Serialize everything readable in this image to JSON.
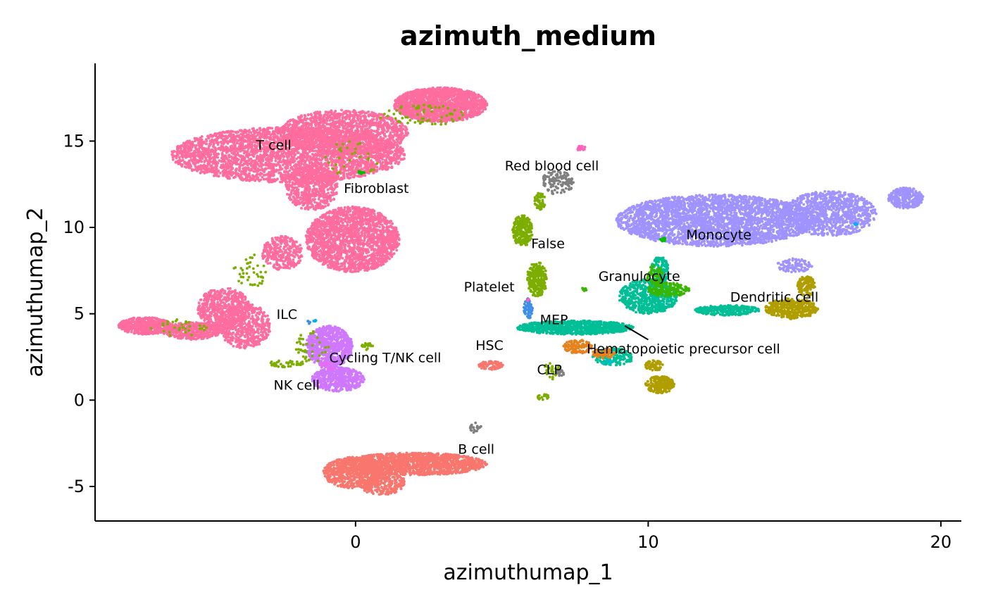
{
  "chart_data": {
    "type": "scatter",
    "title": "azimuth_medium",
    "xlabel": "azimuthumap_1",
    "ylabel": "azimuthumap_2",
    "xlim": [
      -8.9,
      20.7
    ],
    "ylim": [
      -7.0,
      19.5
    ],
    "x_ticks": [
      {
        "value": 0,
        "label": "0"
      },
      {
        "value": 10,
        "label": "10"
      },
      {
        "value": 20,
        "label": "20"
      }
    ],
    "y_ticks": [
      {
        "value": -5,
        "label": "-5"
      },
      {
        "value": 0,
        "label": "0"
      },
      {
        "value": 5,
        "label": "5"
      },
      {
        "value": 10,
        "label": "10"
      },
      {
        "value": 15,
        "label": "15"
      }
    ],
    "grid": false,
    "legend": "none",
    "series": [
      {
        "name": "T cell",
        "color": "#FF6C9E",
        "label_at": [
          -3.4,
          14.5
        ],
        "regions": [
          [
            -2.3,
            14.2,
            4.0,
            1.6,
            3200
          ],
          [
            2.9,
            17.1,
            1.6,
            1.0,
            1800
          ],
          [
            -0.4,
            15.5,
            2.2,
            1.3,
            1400
          ],
          [
            -1.5,
            12.3,
            0.9,
            1.3,
            600
          ],
          [
            -0.1,
            9.3,
            1.6,
            1.9,
            1900
          ],
          [
            -2.5,
            8.5,
            0.7,
            1.0,
            300
          ],
          [
            -4.5,
            5.3,
            0.9,
            1.2,
            600
          ],
          [
            -3.8,
            4.3,
            0.9,
            1.3,
            500
          ],
          [
            -7.2,
            4.3,
            0.9,
            0.5,
            500
          ],
          [
            -5.6,
            4.0,
            1.0,
            0.5,
            400
          ]
        ]
      },
      {
        "name": "B cell",
        "color": "#F8766D",
        "label_at": [
          3.5,
          -3.1
        ],
        "regions": [
          [
            2.0,
            -3.7,
            2.5,
            0.65,
            1500
          ],
          [
            -0.1,
            -4.2,
            1.0,
            0.9,
            600
          ],
          [
            0.9,
            -4.8,
            0.8,
            0.7,
            300
          ],
          [
            4.6,
            2.0,
            0.45,
            0.25,
            80
          ]
        ]
      },
      {
        "name": "Monocyte",
        "color": "#A093FF",
        "label_at": [
          11.3,
          9.3
        ],
        "regions": [
          [
            12.3,
            10.4,
            3.4,
            1.5,
            3000
          ],
          [
            16.2,
            10.8,
            1.6,
            1.3,
            1000
          ],
          [
            18.8,
            11.7,
            0.6,
            0.6,
            300
          ],
          [
            15.0,
            7.8,
            0.6,
            0.4,
            100
          ]
        ]
      },
      {
        "name": "Cycling T/NK cell",
        "color": "#CF78FF",
        "label_at": [
          -0.9,
          2.2
        ],
        "regions": [
          [
            -0.9,
            3.1,
            0.8,
            1.2,
            800
          ],
          [
            -0.6,
            1.2,
            0.9,
            0.7,
            500
          ]
        ]
      },
      {
        "name": "MEP",
        "color": "#00BF96",
        "label_at": [
          6.3,
          4.4
        ],
        "regions": [
          [
            7.5,
            4.2,
            2.0,
            0.4,
            900
          ],
          [
            10.0,
            6.0,
            1.0,
            1.0,
            600
          ],
          [
            10.4,
            7.5,
            0.3,
            0.8,
            150
          ],
          [
            12.7,
            5.2,
            1.1,
            0.3,
            300
          ],
          [
            8.8,
            2.5,
            0.7,
            0.5,
            150
          ]
        ]
      },
      {
        "name": "Dendritic cell",
        "color": "#B09E00",
        "label_at": [
          12.8,
          5.7
        ],
        "regions": [
          [
            14.9,
            5.3,
            0.9,
            0.6,
            400
          ],
          [
            15.4,
            6.6,
            0.3,
            0.6,
            150
          ],
          [
            10.4,
            0.9,
            0.5,
            0.5,
            200
          ],
          [
            10.2,
            2.0,
            0.3,
            0.3,
            60
          ]
        ]
      },
      {
        "name": "False",
        "color": "#7CAE00",
        "label_at": [
          6.0,
          8.8
        ],
        "regions": [
          [
            5.7,
            9.8,
            0.35,
            0.9,
            250
          ],
          [
            6.2,
            7.0,
            0.35,
            1.0,
            250
          ],
          [
            6.3,
            11.5,
            0.2,
            0.5,
            60
          ],
          [
            -1.5,
            3.0,
            0.6,
            1.0,
            40
          ],
          [
            -2.4,
            2.1,
            0.6,
            0.2,
            40
          ],
          [
            2.3,
            16.5,
            1.5,
            0.6,
            60
          ],
          [
            -0.1,
            14.0,
            1.0,
            1.0,
            30
          ],
          [
            -3.6,
            7.5,
            0.6,
            1.0,
            40
          ],
          [
            -6.0,
            4.2,
            1.0,
            0.5,
            30
          ],
          [
            6.7,
            1.7,
            0.3,
            0.5,
            30
          ],
          [
            6.4,
            0.2,
            0.2,
            0.2,
            20
          ],
          [
            0.4,
            3.1,
            0.2,
            0.2,
            20
          ]
        ]
      },
      {
        "name": "Granulocyte",
        "color": "#39B600",
        "label_at": [
          8.3,
          6.9
        ],
        "regions": [
          [
            10.7,
            6.4,
            0.7,
            0.4,
            160
          ],
          [
            10.2,
            7.2,
            0.3,
            0.6,
            60
          ],
          [
            7.8,
            6.4,
            0.1,
            0.1,
            10
          ]
        ]
      },
      {
        "name": "Red blood cell",
        "color": "#808080",
        "label_at": [
          5.1,
          13.3
        ],
        "regions": [
          [
            6.9,
            12.6,
            0.55,
            0.7,
            120
          ],
          [
            7.0,
            1.6,
            0.15,
            0.2,
            20
          ],
          [
            4.1,
            -1.6,
            0.2,
            0.3,
            20
          ]
        ]
      },
      {
        "name": "Fibroblast",
        "color": "#00C000",
        "label_at": [
          -0.4,
          12.0
        ],
        "regions": [
          [
            0.2,
            13.2,
            0.1,
            0.1,
            10
          ],
          [
            10.5,
            9.3,
            0.1,
            0.1,
            10
          ]
        ]
      },
      {
        "name": "Platelet",
        "color": "#3D8FE9",
        "label_at": [
          3.7,
          6.3
        ],
        "regions": [
          [
            5.9,
            5.3,
            0.15,
            0.6,
            60
          ],
          [
            -1.6,
            4.5,
            0.05,
            0.1,
            5
          ]
        ]
      },
      {
        "name": "Hematopoietic precursor cell",
        "color": "#E6821E",
        "label_at": [
          7.9,
          2.7
        ],
        "regions": [
          [
            7.6,
            3.1,
            0.5,
            0.4,
            120
          ],
          [
            8.5,
            2.7,
            0.4,
            0.3,
            60
          ]
        ]
      },
      {
        "name": "HSC",
        "color": "#FF62BC",
        "label_at": [
          4.1,
          2.9
        ],
        "regions": [
          [
            7.7,
            14.6,
            0.15,
            0.15,
            20
          ],
          [
            5.9,
            5.8,
            0.05,
            0.05,
            5
          ]
        ]
      },
      {
        "name": "ILC",
        "color": "#00B0F6",
        "label_at": [
          -2.7,
          4.7
        ],
        "regions": [
          [
            -1.4,
            4.6,
            0.05,
            0.05,
            5
          ],
          [
            17.1,
            10.2,
            0.05,
            0.05,
            5
          ]
        ]
      },
      {
        "name": "NK cell",
        "color": "#E76BF3",
        "label_at": [
          -2.8,
          0.6
        ],
        "regions": [
          [
            -0.9,
            2.0,
            0.3,
            0.3,
            20
          ]
        ]
      },
      {
        "name": "CLP",
        "color": "#00BFC4",
        "label_at": [
          6.2,
          1.5
        ],
        "regions": [
          [
            8.6,
            2.2,
            0.2,
            0.2,
            15
          ]
        ]
      }
    ],
    "label_connectors": [
      {
        "series": "Hematopoietic precursor cell",
        "from": [
          9.2,
          4.3
        ],
        "to": [
          10.0,
          3.5
        ]
      }
    ]
  }
}
